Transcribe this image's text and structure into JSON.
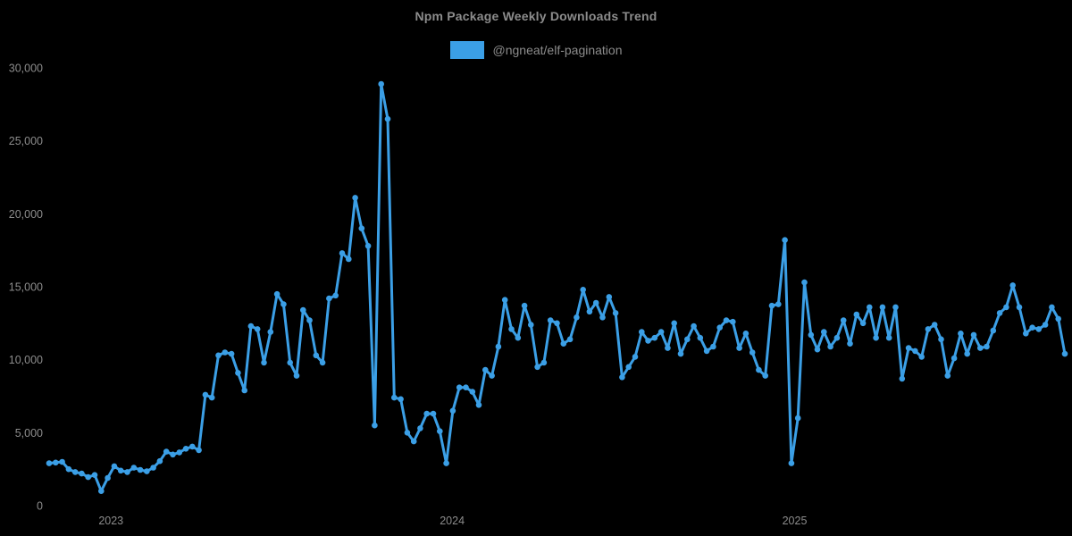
{
  "chart_data": {
    "type": "line",
    "title": "Npm Package Weekly Downloads Trend",
    "xlabel": "",
    "ylabel": "",
    "grid": false,
    "legend_position": "top-center",
    "background_color": "#000000",
    "text_color": "#8c8c8c",
    "y_range": [
      0,
      30000
    ],
    "y_tick_values": [
      0,
      5000,
      10000,
      15000,
      20000,
      25000,
      30000
    ],
    "y_tick_labels": [
      "0",
      "5,000",
      "10,000",
      "15,000",
      "20,000",
      "25,000",
      "30,000"
    ],
    "x_unit": "week",
    "x_ticks": [
      {
        "label": "2023",
        "week": 9.5
      },
      {
        "label": "2024",
        "week": 61.9
      },
      {
        "label": "2025",
        "week": 114.5
      }
    ],
    "series": [
      {
        "name": "@ngneat/elf-pagination",
        "color": "#3b9fe6",
        "marker": "circle",
        "values": [
          2900,
          2950,
          3000,
          2500,
          2300,
          2200,
          1950,
          2100,
          1000,
          1900,
          2700,
          2400,
          2300,
          2600,
          2450,
          2350,
          2600,
          3050,
          3700,
          3500,
          3650,
          3900,
          4050,
          3800,
          7600,
          7400,
          10300,
          10500,
          10400,
          9100,
          7900,
          12300,
          12100,
          9800,
          11900,
          14500,
          13800,
          9800,
          8900,
          13400,
          12700,
          10300,
          9800,
          14200,
          14400,
          17300,
          16900,
          21100,
          19000,
          17800,
          5500,
          28900,
          26500,
          7400,
          7300,
          5000,
          4400,
          5300,
          6300,
          6300,
          5100,
          2900,
          6500,
          8100,
          8100,
          7800,
          6900,
          9300,
          8900,
          10900,
          14100,
          12100,
          11500,
          13700,
          12400,
          9500,
          9800,
          12700,
          12500,
          11100,
          11400,
          12900,
          14800,
          13300,
          13900,
          12900,
          14300,
          13200,
          8800,
          9500,
          10200,
          11900,
          11300,
          11500,
          11900,
          10800,
          12500,
          10400,
          11400,
          12300,
          11500,
          10600,
          10900,
          12200,
          12700,
          12600,
          10800,
          11800,
          10500,
          9300,
          8900,
          13700,
          13800,
          18200,
          2900,
          6000,
          15300,
          11700,
          10700,
          11900,
          10900,
          11500,
          12700,
          11100,
          13100,
          12500,
          13600,
          11500,
          13600,
          11500,
          13600,
          8700,
          10800,
          10600,
          10200,
          12100,
          12400,
          11400,
          8900,
          10100,
          11800,
          10400,
          11700,
          10800,
          10900,
          12000,
          13200,
          13600,
          15100,
          13600,
          11800,
          12200,
          12100,
          12400,
          13600,
          12800,
          10400
        ]
      }
    ]
  }
}
